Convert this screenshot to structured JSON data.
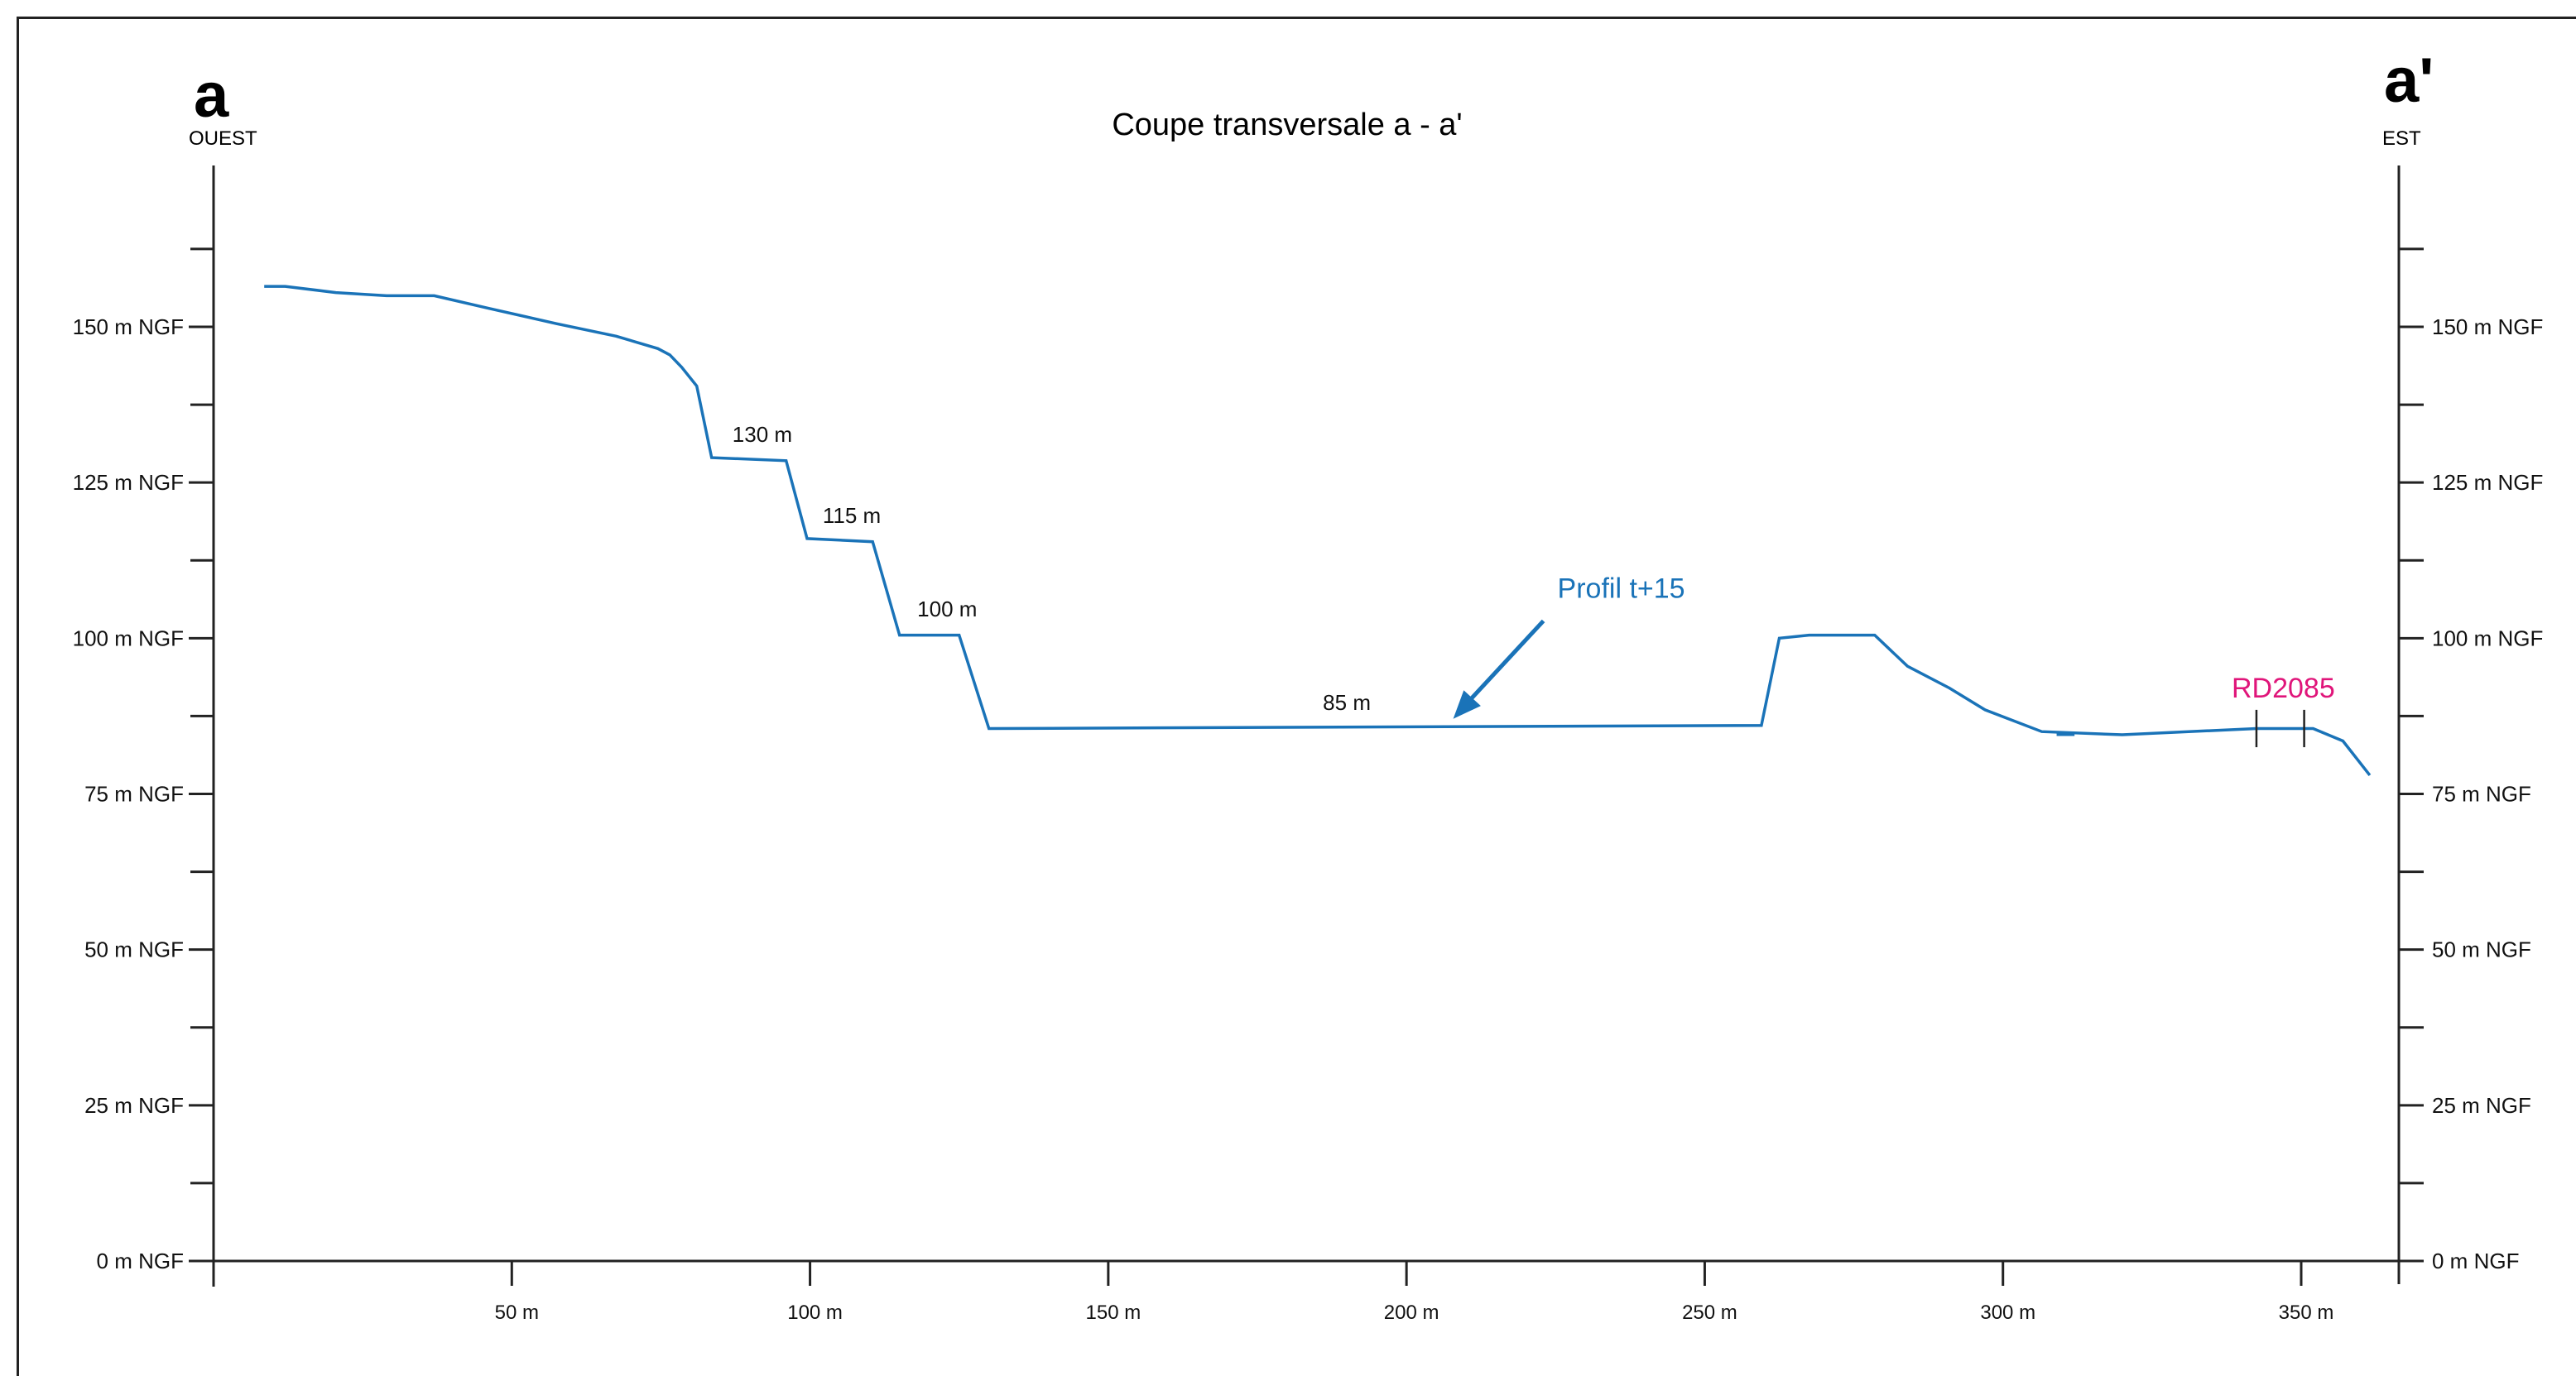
{
  "title": "Coupe transversale a - a'",
  "left_end": {
    "letter": "a",
    "direction": "OUEST"
  },
  "right_end": {
    "letter": "a'",
    "direction": "EST"
  },
  "colors": {
    "profile": "#1a73b8",
    "road": "#e0157a",
    "axis": "#222222",
    "text": "#111111"
  },
  "chart_data": {
    "type": "line",
    "x_unit": "m",
    "xlim": [
      0,
      366
    ],
    "ylim": [
      0,
      175
    ],
    "x_ticks": [
      50,
      100,
      150,
      200,
      250,
      300,
      350
    ],
    "x_tick_labels": [
      "50 m",
      "100 m",
      "150 m",
      "200 m",
      "250 m",
      "300 m",
      "350 m"
    ],
    "y_ticks_major": [
      0,
      25,
      50,
      75,
      100,
      125,
      150
    ],
    "y_tick_labels": [
      "0 m NGF",
      "25 m NGF",
      "50 m NGF",
      "75 m NGF",
      "100 m NGF",
      "125 m NGF",
      "150 m NGF"
    ],
    "y_ticks_minor": [
      12.5,
      37.5,
      62.5,
      87.5,
      112.5,
      137.5,
      162.5
    ],
    "series": [
      {
        "points": [
          [
            8.5,
            156.5
          ],
          [
            12,
            156.5
          ],
          [
            20.5,
            155.5
          ],
          [
            29,
            155
          ],
          [
            37,
            155
          ],
          [
            46,
            153
          ],
          [
            57.5,
            150.5
          ],
          [
            67.5,
            148.5
          ],
          [
            74.5,
            146.5
          ],
          [
            76.5,
            145.5
          ],
          [
            78.5,
            143.5
          ],
          [
            81,
            140.5
          ],
          [
            83.5,
            129
          ],
          [
            96,
            128.5
          ],
          [
            99.5,
            116
          ],
          [
            110.5,
            115.5
          ],
          [
            115,
            100.5
          ],
          [
            125,
            100.5
          ],
          [
            130,
            85.5
          ],
          [
            259.5,
            86
          ],
          [
            262.5,
            100
          ],
          [
            267.5,
            100.5
          ],
          [
            278.5,
            100.5
          ],
          [
            284,
            95.5
          ],
          [
            291,
            92
          ],
          [
            297,
            88.5
          ],
          [
            306.5,
            85
          ],
          [
            320,
            84.5
          ],
          [
            342.5,
            85.5
          ],
          [
            352,
            85.5
          ],
          [
            357,
            83.5
          ],
          [
            361.5,
            78
          ]
        ]
      }
    ],
    "annotations": [
      {
        "text": "130 m",
        "x": 92,
        "y": 131.5
      },
      {
        "text": "115 m",
        "x": 107,
        "y": 118.5
      },
      {
        "text": "100 m",
        "x": 123,
        "y": 103.5
      },
      {
        "text": "85 m",
        "x": 190,
        "y": 88.5
      },
      {
        "text": "Profil  t+15",
        "x": 236,
        "y": 106.5,
        "arrow_to": [
          207,
          86
        ]
      },
      {
        "text": "RD2085",
        "x": 347,
        "y": 90.5
      }
    ],
    "road_marks_x": [
      342.5,
      350.5
    ]
  }
}
